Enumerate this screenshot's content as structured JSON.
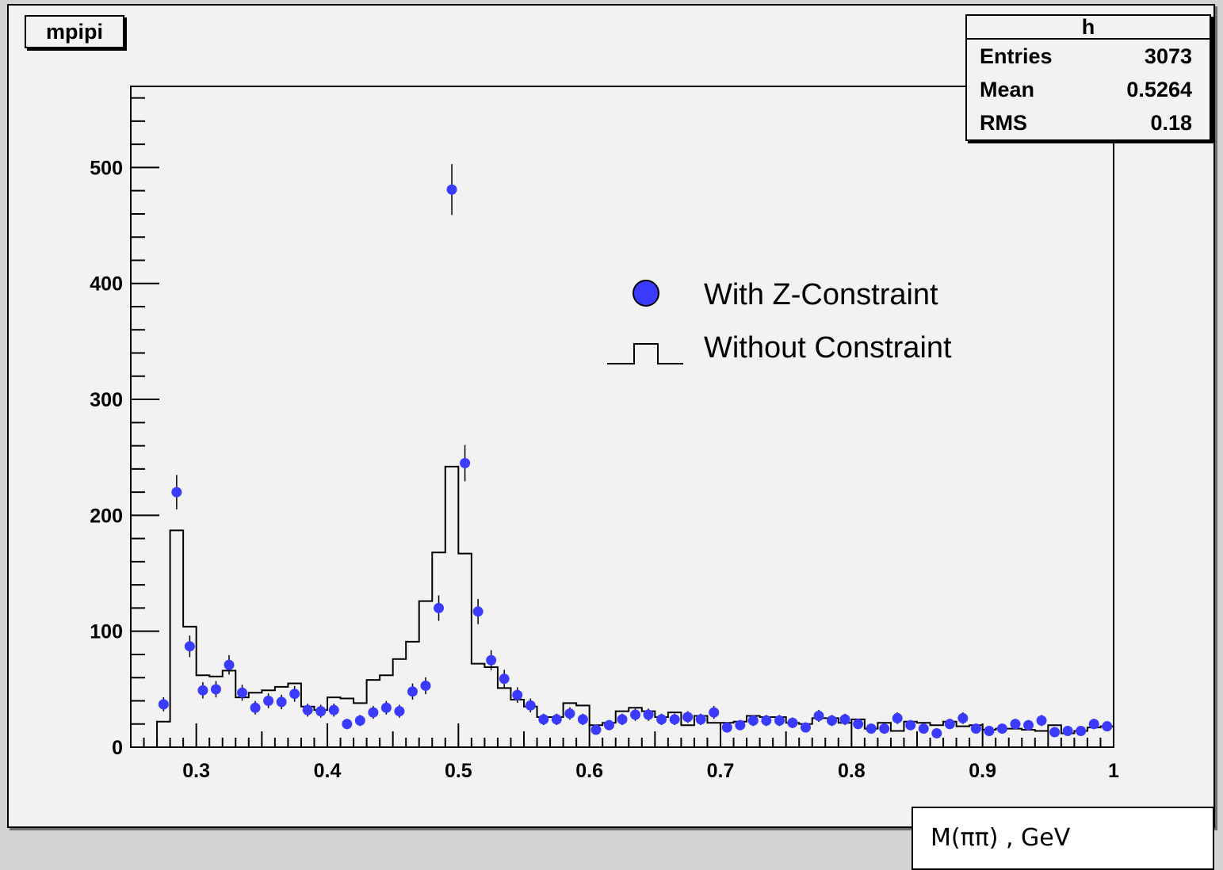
{
  "chart_data": {
    "type": "histogram",
    "title": "mpipi",
    "stats": {
      "name": "h",
      "rows": [
        {
          "label": "Entries",
          "value": "3073"
        },
        {
          "label": "Mean",
          "value": "0.5264"
        },
        {
          "label": "RMS",
          "value": "0.18"
        }
      ]
    },
    "xlabel": "M(ππ) , GeV",
    "xlim": [
      0.25,
      1.0
    ],
    "ylim": [
      0,
      570
    ],
    "xticks": [
      "0.3",
      "0.4",
      "0.5",
      "0.6",
      "0.7",
      "0.8",
      "0.9",
      "1"
    ],
    "yticks": [
      "0",
      "100",
      "200",
      "300",
      "400",
      "500"
    ],
    "bin_width": 0.01,
    "legend": [
      {
        "label": "With Z-Constraint",
        "marker": "circle",
        "color": "#3b3bff"
      },
      {
        "label": "Without Constraint",
        "marker": "step-line",
        "color": "#000000"
      }
    ],
    "series": [
      {
        "name": "With Z-Constraint",
        "style": "points-with-errors",
        "color": "#3b3bff",
        "x": [
          0.275,
          0.285,
          0.295,
          0.305,
          0.315,
          0.325,
          0.335,
          0.345,
          0.355,
          0.365,
          0.375,
          0.385,
          0.395,
          0.405,
          0.415,
          0.425,
          0.435,
          0.445,
          0.455,
          0.465,
          0.475,
          0.485,
          0.495,
          0.505,
          0.515,
          0.525,
          0.535,
          0.545,
          0.555,
          0.565,
          0.575,
          0.585,
          0.595,
          0.605,
          0.615,
          0.625,
          0.635,
          0.645,
          0.655,
          0.665,
          0.675,
          0.685,
          0.695,
          0.705,
          0.715,
          0.725,
          0.735,
          0.745,
          0.755,
          0.765,
          0.775,
          0.785,
          0.795,
          0.805,
          0.815,
          0.825,
          0.835,
          0.845,
          0.855,
          0.865,
          0.875,
          0.885,
          0.895,
          0.905,
          0.915,
          0.925,
          0.935,
          0.945,
          0.955,
          0.965,
          0.975,
          0.985,
          0.995
        ],
        "y": [
          37,
          220,
          87,
          49,
          50,
          71,
          47,
          34,
          40,
          39,
          46,
          32,
          31,
          32,
          20,
          23,
          30,
          34,
          31,
          48,
          53,
          120,
          481,
          245,
          117,
          75,
          59,
          45,
          36,
          24,
          24,
          29,
          24,
          15,
          19,
          24,
          28,
          28,
          24,
          24,
          26,
          24,
          30,
          17,
          19,
          23,
          23,
          23,
          21,
          17,
          27,
          23,
          24,
          20,
          16,
          16,
          25,
          19,
          16,
          12,
          20,
          25,
          16,
          14,
          16,
          20,
          19,
          23,
          13,
          14,
          14,
          20,
          18
        ]
      },
      {
        "name": "Without Constraint",
        "style": "step",
        "color": "#000000",
        "x": [
          0.275,
          0.285,
          0.295,
          0.305,
          0.315,
          0.325,
          0.335,
          0.345,
          0.355,
          0.365,
          0.375,
          0.385,
          0.395,
          0.405,
          0.415,
          0.425,
          0.435,
          0.445,
          0.455,
          0.465,
          0.475,
          0.485,
          0.495,
          0.505,
          0.515,
          0.525,
          0.535,
          0.545,
          0.555,
          0.565,
          0.575,
          0.585,
          0.595,
          0.605,
          0.615,
          0.625,
          0.635,
          0.645,
          0.655,
          0.665,
          0.675,
          0.685,
          0.695,
          0.705,
          0.715,
          0.725,
          0.735,
          0.745,
          0.755,
          0.765,
          0.775,
          0.785,
          0.795,
          0.805,
          0.815,
          0.825,
          0.835,
          0.845,
          0.855,
          0.865,
          0.875,
          0.885,
          0.895,
          0.905,
          0.915,
          0.925,
          0.935,
          0.945,
          0.955,
          0.965,
          0.975,
          0.985,
          0.995
        ],
        "y": [
          22,
          187,
          104,
          62,
          61,
          66,
          43,
          47,
          49,
          52,
          55,
          35,
          32,
          43,
          42,
          38,
          58,
          62,
          76,
          91,
          126,
          168,
          242,
          167,
          72,
          69,
          51,
          41,
          35,
          26,
          26,
          38,
          36,
          19,
          21,
          31,
          34,
          31,
          26,
          30,
          19,
          27,
          21,
          21,
          22,
          27,
          26,
          26,
          21,
          20,
          25,
          25,
          21,
          24,
          16,
          21,
          14,
          22,
          21,
          19,
          22,
          18,
          19,
          15,
          16,
          16,
          15,
          14,
          19,
          12,
          14,
          17,
          18
        ]
      }
    ]
  }
}
